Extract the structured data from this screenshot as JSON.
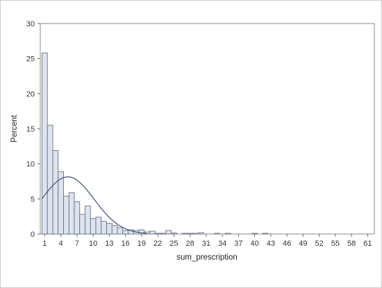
{
  "chart_data": {
    "type": "bar",
    "title": "",
    "xlabel": "sum_prescription",
    "ylabel": "Percent",
    "xlim": [
      0,
      62
    ],
    "ylim": [
      0,
      30
    ],
    "bin_width": 1,
    "x_ticks": [
      1,
      4,
      7,
      10,
      13,
      16,
      19,
      22,
      25,
      28,
      31,
      34,
      37,
      40,
      43,
      46,
      49,
      52,
      55,
      58,
      61
    ],
    "y_ticks": [
      0,
      5,
      10,
      15,
      20,
      25,
      30
    ],
    "bins": [
      {
        "x": 1,
        "value": 25.8
      },
      {
        "x": 2,
        "value": 15.5
      },
      {
        "x": 3,
        "value": 11.9
      },
      {
        "x": 4,
        "value": 8.9
      },
      {
        "x": 5,
        "value": 5.4
      },
      {
        "x": 6,
        "value": 5.9
      },
      {
        "x": 7,
        "value": 4.6
      },
      {
        "x": 8,
        "value": 2.8
      },
      {
        "x": 9,
        "value": 4.0
      },
      {
        "x": 10,
        "value": 2.2
      },
      {
        "x": 11,
        "value": 2.4
      },
      {
        "x": 12,
        "value": 1.8
      },
      {
        "x": 13,
        "value": 1.5
      },
      {
        "x": 14,
        "value": 1.2
      },
      {
        "x": 15,
        "value": 0.9
      },
      {
        "x": 16,
        "value": 0.5
      },
      {
        "x": 17,
        "value": 0.6
      },
      {
        "x": 18,
        "value": 0.5
      },
      {
        "x": 19,
        "value": 0.6
      },
      {
        "x": 20,
        "value": 0.3
      },
      {
        "x": 21,
        "value": 0.4
      },
      {
        "x": 22,
        "value": 0.1
      },
      {
        "x": 23,
        "value": 0.1
      },
      {
        "x": 24,
        "value": 0.5
      },
      {
        "x": 25,
        "value": 0.15
      },
      {
        "x": 27,
        "value": 0.1
      },
      {
        "x": 28,
        "value": 0.1
      },
      {
        "x": 29,
        "value": 0.1
      },
      {
        "x": 30,
        "value": 0.2
      },
      {
        "x": 33,
        "value": 0.1
      },
      {
        "x": 35,
        "value": 0.1
      },
      {
        "x": 40,
        "value": 0.1
      },
      {
        "x": 42,
        "value": 0.1
      }
    ],
    "normal_curve": {
      "mean": 5.3,
      "sd": 4.9,
      "scale_percent": 100
    },
    "grid": false,
    "legend": "none",
    "colors": {
      "bar_fill": "#dde4f0",
      "bar_stroke": "#5a6270",
      "curve": "#3a4f7a",
      "axis": "#666666",
      "frame": "#c9c9c9"
    }
  }
}
